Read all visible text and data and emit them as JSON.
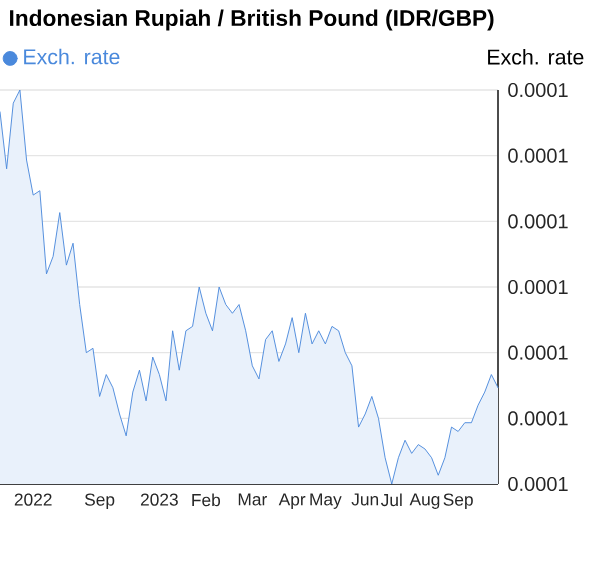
{
  "chart_data": {
    "type": "area",
    "title": "Indonesian Rupiah / British Pound (IDR/GBP)",
    "ylabel": "Exch. rate",
    "categories": [
      null,
      null,
      null,
      null,
      null,
      "2022",
      null,
      null,
      null,
      null,
      null,
      null,
      null,
      null,
      null,
      "Sep",
      null,
      null,
      null,
      null,
      null,
      null,
      null,
      null,
      "2023",
      null,
      null,
      null,
      null,
      null,
      null,
      "Feb",
      null,
      null,
      null,
      null,
      null,
      null,
      "Mar",
      null,
      null,
      null,
      null,
      null,
      "Apr",
      null,
      null,
      null,
      null,
      "May",
      null,
      null,
      null,
      null,
      null,
      "Jun",
      null,
      null,
      null,
      "Jul",
      null,
      null,
      null,
      null,
      "Aug",
      null,
      null,
      null,
      null,
      "Sep",
      null,
      null,
      null,
      null,
      null,
      null
    ],
    "ylim": [
      5.1e-05,
      6e-05
    ],
    "yticks": [
      {
        "value": 5.1e-05,
        "label": "0.0001"
      },
      {
        "value": 5.25e-05,
        "label": "0.0001"
      },
      {
        "value": 5.4e-05,
        "label": "0.0001"
      },
      {
        "value": 5.55e-05,
        "label": "0.0001"
      },
      {
        "value": 5.7e-05,
        "label": "0.0001"
      },
      {
        "value": 5.85e-05,
        "label": "0.0001"
      },
      {
        "value": 6e-05,
        "label": "0.0001"
      }
    ],
    "grid": "y",
    "legend": "top left",
    "series": [
      {
        "name": "Exch. rate",
        "color": "#4a89dc",
        "values": [
          5.95e-05,
          5.82e-05,
          5.97e-05,
          6e-05,
          5.84e-05,
          5.76e-05,
          5.77e-05,
          5.58e-05,
          5.62e-05,
          5.72e-05,
          5.6e-05,
          5.65e-05,
          5.51e-05,
          5.4e-05,
          5.41e-05,
          5.3e-05,
          5.35e-05,
          5.32e-05,
          5.26e-05,
          5.21e-05,
          5.31e-05,
          5.36e-05,
          5.29e-05,
          5.39e-05,
          5.35e-05,
          5.29e-05,
          5.45e-05,
          5.36e-05,
          5.45e-05,
          5.46e-05,
          5.55e-05,
          5.49e-05,
          5.45e-05,
          5.55e-05,
          5.51e-05,
          5.49e-05,
          5.51e-05,
          5.45e-05,
          5.37e-05,
          5.34e-05,
          5.43e-05,
          5.45e-05,
          5.38e-05,
          5.42e-05,
          5.48e-05,
          5.4e-05,
          5.49e-05,
          5.42e-05,
          5.45e-05,
          5.42e-05,
          5.46e-05,
          5.45e-05,
          5.4e-05,
          5.37e-05,
          5.23e-05,
          5.26e-05,
          5.3e-05,
          5.25e-05,
          5.16e-05,
          5.1e-05,
          5.16e-05,
          5.2e-05,
          5.17e-05,
          5.19e-05,
          5.18e-05,
          5.16e-05,
          5.12e-05,
          5.16e-05,
          5.23e-05,
          5.22e-05,
          5.24e-05,
          5.24e-05,
          5.28e-05,
          5.31e-05,
          5.35e-05,
          5.32e-05
        ]
      }
    ]
  }
}
